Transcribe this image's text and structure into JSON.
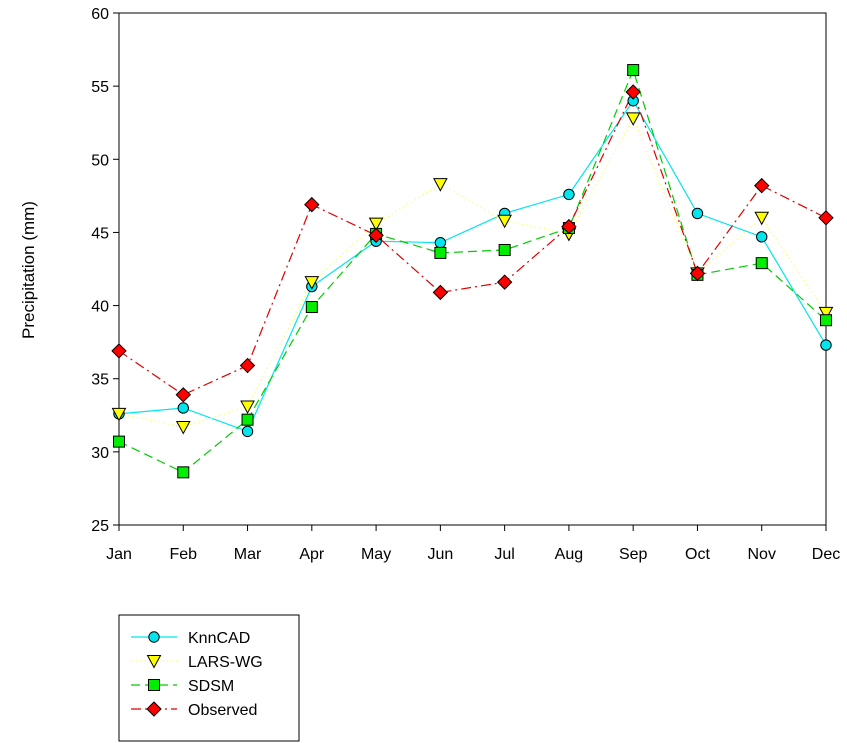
{
  "chart_data": {
    "type": "line",
    "title": "",
    "xlabel": "",
    "ylabel": "Precipitation (mm)",
    "ylim": [
      25,
      60
    ],
    "yticks": [
      25,
      30,
      35,
      40,
      45,
      50,
      55,
      60
    ],
    "categories": [
      "Jan",
      "Feb",
      "Mar",
      "Apr",
      "May",
      "Jun",
      "Jul",
      "Aug",
      "Sep",
      "Oct",
      "Nov",
      "Dec"
    ],
    "grid": false,
    "legend_position": "bottom-left",
    "series": [
      {
        "name": "KnnCAD",
        "marker": "circle",
        "line_style": "solid",
        "line_color": "#00e5ee",
        "marker_fill": "#00e5ee",
        "values": [
          32.6,
          33.0,
          31.4,
          41.3,
          44.4,
          44.3,
          46.3,
          47.6,
          54.0,
          46.3,
          44.7,
          37.3
        ]
      },
      {
        "name": "LARS-WG",
        "marker": "triangle-down",
        "line_style": "dotted",
        "line_color": "#ffff80",
        "marker_fill": "#ffff00",
        "values": [
          32.6,
          31.7,
          33.1,
          41.6,
          45.6,
          48.3,
          45.8,
          44.9,
          52.8,
          42.2,
          46.0,
          39.5
        ]
      },
      {
        "name": "SDSM",
        "marker": "square",
        "line_style": "dashed",
        "line_color": "#00cc00",
        "marker_fill": "#00ee00",
        "values": [
          30.7,
          28.6,
          32.2,
          39.9,
          44.9,
          43.6,
          43.8,
          45.3,
          56.1,
          42.1,
          42.9,
          39.0
        ]
      },
      {
        "name": "Observed",
        "marker": "diamond",
        "line_style": "dash-dot",
        "line_color": "#dd0000",
        "marker_fill": "#ff0000",
        "values": [
          36.9,
          33.9,
          35.9,
          46.9,
          44.8,
          40.9,
          41.6,
          45.4,
          54.6,
          42.2,
          48.2,
          46.0
        ]
      }
    ]
  }
}
